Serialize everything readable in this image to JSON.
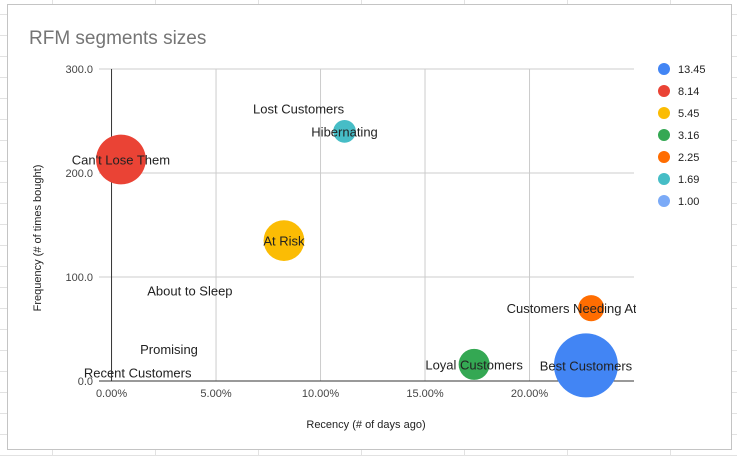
{
  "chart_data": {
    "type": "bubble",
    "title": "RFM segments sizes",
    "xlabel": "Recency (# of days ago)",
    "ylabel": "Frequency (# of times bought)",
    "xlim": [
      -0.006,
      0.25
    ],
    "ylim": [
      0,
      300
    ],
    "x_ticks": [
      0,
      0.05,
      0.1,
      0.15,
      0.2
    ],
    "x_tick_labels": [
      "0.00%",
      "5.00%",
      "10.00%",
      "15.00%",
      "20.00%"
    ],
    "y_ticks": [
      0,
      100,
      200,
      300
    ],
    "y_tick_labels": [
      "0.0",
      "100.0",
      "200.0",
      "300.0"
    ],
    "grid": true,
    "legend_position": "right",
    "legend": [
      {
        "label": "13.45",
        "color": "#4285f4"
      },
      {
        "label": "8.14",
        "color": "#ea4335"
      },
      {
        "label": "5.45",
        "color": "#fbbc04"
      },
      {
        "label": "3.16",
        "color": "#34a853"
      },
      {
        "label": "2.25",
        "color": "#ff6d01"
      },
      {
        "label": "1.69",
        "color": "#46bdc6"
      },
      {
        "label": "1.00",
        "color": "#7baaf7"
      }
    ],
    "points": [
      {
        "label": "Best Customers",
        "x": 0.227,
        "y": 15,
        "size": 13.45,
        "color": "#4285f4"
      },
      {
        "label": "Can't Lose Them",
        "x": 0.0045,
        "y": 213,
        "size": 8.14,
        "color": "#ea4335"
      },
      {
        "label": "At Risk",
        "x": 0.0825,
        "y": 135,
        "size": 5.45,
        "color": "#fbbc04"
      },
      {
        "label": "Loyal Customers",
        "x": 0.1735,
        "y": 16,
        "size": 3.16,
        "color": "#34a853"
      },
      {
        "label": "Customers Needing Attention",
        "x": 0.2295,
        "y": 70,
        "size": 2.25,
        "color": "#ff6d01"
      },
      {
        "label": "Hibernating",
        "x": 0.1115,
        "y": 240,
        "size": 1.69,
        "color": "#46bdc6"
      },
      {
        "label": "Lost Customers",
        "x": 0.0895,
        "y": 262,
        "size": 1.0,
        "color": "#7baaf7"
      },
      {
        "label": "About to Sleep",
        "x": 0.0375,
        "y": 87,
        "size": 1.0,
        "color": "#7baaf7"
      },
      {
        "label": "Promising",
        "x": 0.0275,
        "y": 31,
        "size": 1.0,
        "color": "#7baaf7"
      },
      {
        "label": "Recent Customers",
        "x": 0.0125,
        "y": 8,
        "size": 1.0,
        "color": "#7baaf7"
      }
    ]
  }
}
